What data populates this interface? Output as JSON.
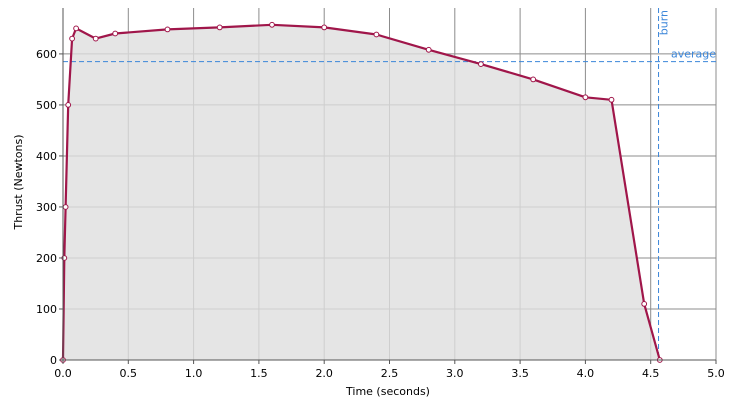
{
  "chart_data": {
    "type": "area",
    "xlabel": "Time (seconds)",
    "ylabel": "Thrust (Newtons)",
    "xlim": [
      0.0,
      5.0
    ],
    "ylim": [
      0,
      690
    ],
    "xticks": [
      0.0,
      0.5,
      1.0,
      1.5,
      2.0,
      2.5,
      3.0,
      3.5,
      4.0,
      4.5,
      5.0
    ],
    "xtick_labels": [
      "0.0",
      "0.5",
      "1.0",
      "1.5",
      "2.0",
      "2.5",
      "3.0",
      "3.5",
      "4.0",
      "4.5",
      "5.0"
    ],
    "yticks": [
      0,
      100,
      200,
      300,
      400,
      500,
      600
    ],
    "ytick_labels": [
      "0",
      "100",
      "200",
      "300",
      "400",
      "500",
      "600"
    ],
    "grid": true,
    "series": [
      {
        "x": [
          0.0,
          0.01,
          0.02,
          0.04,
          0.07,
          0.1,
          0.25,
          0.4,
          0.8,
          1.2,
          1.6,
          2.0,
          2.4,
          2.8,
          3.2,
          3.6,
          4.0,
          4.2,
          4.45,
          4.57
        ],
        "y": [
          0,
          200,
          300,
          500,
          630,
          650,
          630,
          640,
          648,
          652,
          657,
          652,
          638,
          608,
          580,
          550,
          515,
          510,
          110,
          0
        ],
        "color": "#a0164a",
        "fill": "#dedede"
      }
    ],
    "reference_lines": [
      {
        "orientation": "horizontal",
        "value": 585,
        "label": "average",
        "color": "#3b86d9"
      },
      {
        "orientation": "vertical",
        "value": 4.56,
        "label": "burn",
        "color": "#3b86d9"
      }
    ]
  }
}
